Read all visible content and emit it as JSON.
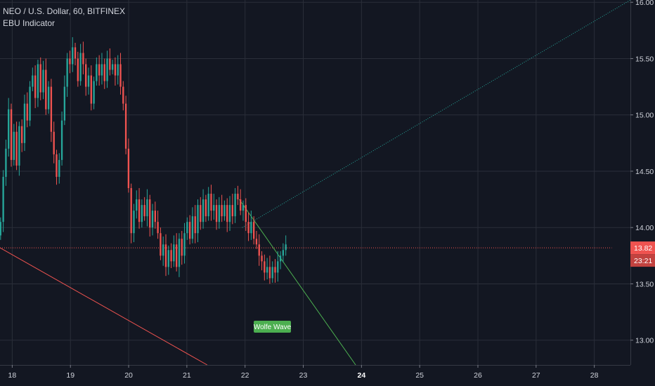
{
  "header": {
    "symbol_line": "NEO / U.S. Dollar, 60, BITFINEX",
    "indicator": "EBU Indicator"
  },
  "colors": {
    "background": "#131722",
    "grid": "#2a2e39",
    "up": "#26a69a",
    "down": "#ef5350",
    "price_line": "#ef5350",
    "wolfe": "#4caf50",
    "axis_text": "#d1d4dc"
  },
  "price_axis": {
    "ticks": [
      "16.00",
      "15.50",
      "15.00",
      "14.50",
      "14.00",
      "13.50",
      "13.00"
    ],
    "current_price": "13.82",
    "countdown": "23:21"
  },
  "time_axis": {
    "ticks": [
      "18",
      "19",
      "20",
      "21",
      "22",
      "23",
      "24",
      "25",
      "26",
      "27",
      "28"
    ],
    "bold_ticks": [
      "24"
    ]
  },
  "annotation": {
    "label": "Wolfe Wave"
  },
  "chart_data": {
    "type": "candlestick",
    "ylim": [
      12.78,
      16.02
    ],
    "x_unit": "day of month",
    "xlim": [
      17.79,
      28.62
    ],
    "current_price": 13.82,
    "candle_interval_hours": 1,
    "candles_first_x": 17.8,
    "candles_last_x": 22.7,
    "candles_closes": [
      14.05,
      14.45,
      14.7,
      15.05,
      14.6,
      14.85,
      14.55,
      14.9,
      14.75,
      15.1,
      14.95,
      15.25,
      15.35,
      15.15,
      15.45,
      15.2,
      15.4,
      15.05,
      15.25,
      14.85,
      14.65,
      14.45,
      14.6,
      14.95,
      15.25,
      15.5,
      15.45,
      15.6,
      15.5,
      15.3,
      15.55,
      15.45,
      15.25,
      15.35,
      15.1,
      15.3,
      15.45,
      15.35,
      15.45,
      15.3,
      15.5,
      15.4,
      15.45,
      15.35,
      15.45,
      15.25,
      15.1,
      14.7,
      14.35,
      13.95,
      14.15,
      14.25,
      14.05,
      14.2,
      14.1,
      14.25,
      14.0,
      14.15,
      14.05,
      13.95,
      13.75,
      13.85,
      13.65,
      13.8,
      13.7,
      13.85,
      13.65,
      13.9,
      13.75,
      13.95,
      14.05,
      13.9,
      14.1,
      13.95,
      14.2,
      14.05,
      14.25,
      14.1,
      14.3,
      14.15,
      14.2,
      14.05,
      14.2,
      14.1,
      14.2,
      14.05,
      14.2,
      14.1,
      14.3,
      14.25,
      14.15,
      14.2,
      14.05,
      13.95,
      14.05,
      13.9,
      13.85,
      13.75,
      13.7,
      13.6,
      13.65,
      13.55,
      13.65,
      13.6,
      13.7,
      13.75,
      13.8,
      13.85
    ],
    "lines": [
      {
        "name": "",
        "style": "solid",
        "color": "#ef5350",
        "points": [
          [
            17.79,
            13.82
          ],
          [
            21.35,
            12.78
          ]
        ]
      },
      {
        "name": "",
        "style": "dotted",
        "color": "#26a69a",
        "points": [
          [
            21.95,
            14.0
          ],
          [
            28.62,
            16.02
          ]
        ]
      },
      {
        "name": "",
        "style": "solid",
        "color": "#4caf50",
        "points": [
          [
            21.9,
            14.25
          ],
          [
            23.9,
            12.78
          ]
        ]
      },
      {
        "name": "",
        "style": "dotted",
        "color": "#ef5350",
        "points": [
          [
            17.79,
            13.82
          ],
          [
            28.3,
            13.82
          ]
        ]
      }
    ]
  }
}
